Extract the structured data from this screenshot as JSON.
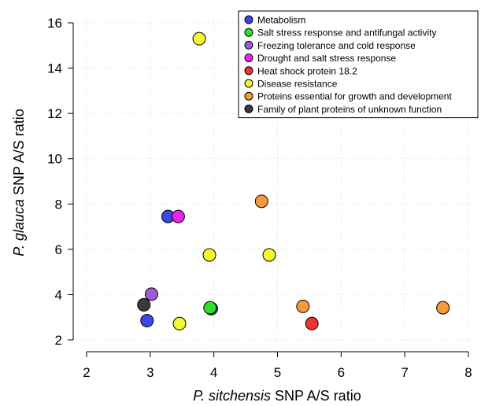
{
  "chart_data": {
    "type": "scatter",
    "xlabel_italic": "P. sitchensis",
    "xlabel_rest": " SNP A/S ratio",
    "ylabel_italic": "P. glauca",
    "ylabel_rest": " SNP A/S ratio",
    "xlim": [
      2,
      8
    ],
    "ylim": [
      2,
      16
    ],
    "x_ticks": [
      2,
      3,
      4,
      5,
      6,
      7,
      8
    ],
    "y_ticks": [
      2,
      4,
      6,
      8,
      10,
      12,
      14,
      16
    ],
    "grid": true,
    "legend_position": "top-right",
    "series": [
      {
        "name": "Metabolism",
        "color": "#3a48e8",
        "points": [
          [
            3.28,
            7.45
          ],
          [
            2.95,
            2.85
          ],
          [
            3.96,
            3.38
          ]
        ]
      },
      {
        "name": "Salt stress response and antifungal activity",
        "color": "#2ee02e",
        "points": [
          [
            3.94,
            3.42
          ]
        ]
      },
      {
        "name": "Freezing tolerance and cold response",
        "color": "#9b5bd6",
        "points": [
          [
            3.02,
            4.02
          ]
        ]
      },
      {
        "name": "Drought and salt stress response",
        "color": "#ee22ee",
        "points": [
          [
            3.44,
            7.45
          ]
        ]
      },
      {
        "name": "Heat shock protein 18.2",
        "color": "#ee3333",
        "points": [
          [
            5.54,
            2.72
          ]
        ]
      },
      {
        "name": "Disease resistance",
        "color": "#f5f530",
        "points": [
          [
            3.77,
            15.3
          ],
          [
            3.93,
            5.75
          ],
          [
            4.87,
            5.75
          ],
          [
            3.46,
            2.72
          ]
        ]
      },
      {
        "name": "Proteins essential for growth and development",
        "color": "#f59a3c",
        "points": [
          [
            4.75,
            8.12
          ],
          [
            5.4,
            3.48
          ],
          [
            7.6,
            3.42
          ]
        ]
      },
      {
        "name": "Family of plant proteins of unknown function",
        "color": "#3a3a3a",
        "points": [
          [
            2.9,
            3.55
          ]
        ]
      }
    ]
  }
}
